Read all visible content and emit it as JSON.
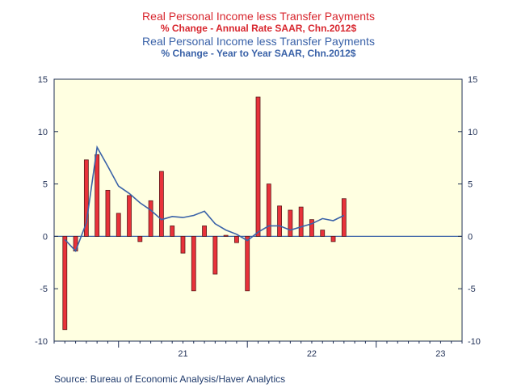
{
  "titles": {
    "series1_title": "Real Personal Income less Transfer Payments",
    "series1_subtitle": "% Change - Annual Rate    SAAR, Chn.2012$",
    "series2_title": "Real Personal Income less Transfer Payments",
    "series2_subtitle": "% Change - Year to Year    SAAR, Chn.2012$"
  },
  "source": "Source:  Bureau of Economic Analysis/Haver Analytics",
  "colors": {
    "plot_background": "#ffffe1",
    "bar_fill": "#e8323a",
    "bar_stroke": "#5a1a1a",
    "line": "#3a62a8",
    "zero_line": "#3a62a8",
    "title_red": "#d8262e",
    "title_blue": "#3a62a8"
  },
  "chart_data": {
    "type": "bar",
    "title": "Real Personal Income less Transfer Payments",
    "ylim": [
      -10,
      15
    ],
    "yticks": [
      -10,
      -5,
      0,
      5,
      10,
      15
    ],
    "grid": false,
    "x_tick_labels": [
      "21",
      "22",
      "23"
    ],
    "x_range": [
      "2020-07",
      "2023-09"
    ],
    "categories": [
      "2020-08",
      "2020-09",
      "2020-10",
      "2020-11",
      "2020-12",
      "2021-01",
      "2021-02",
      "2021-03",
      "2021-04",
      "2021-05",
      "2021-06",
      "2021-07",
      "2021-08",
      "2021-09",
      "2021-10",
      "2021-11",
      "2021-12",
      "2022-01",
      "2022-02",
      "2022-03",
      "2022-04",
      "2022-05",
      "2022-06",
      "2022-07",
      "2022-08",
      "2022-09",
      "2022-10",
      "2022-11"
    ],
    "series": [
      {
        "name": "% Change - Annual Rate",
        "kind": "bar",
        "values": [
          -8.9,
          -1.4,
          7.3,
          7.8,
          4.4,
          2.2,
          3.9,
          -0.5,
          3.4,
          6.2,
          1.0,
          -1.6,
          -5.2,
          1.0,
          -3.6,
          0.1,
          -0.6,
          -5.2,
          13.3,
          5.0,
          2.9,
          2.5,
          2.8,
          1.6,
          0.6,
          -0.5,
          3.6,
          null
        ]
      },
      {
        "name": "% Change - Year to Year",
        "kind": "line",
        "values": [
          -0.3,
          -1.4,
          1.3,
          8.5,
          6.7,
          4.8,
          4.1,
          3.2,
          2.5,
          1.6,
          1.9,
          1.8,
          2.0,
          2.4,
          1.2,
          0.6,
          0.2,
          -0.4,
          0.4,
          1.0,
          1.0,
          0.6,
          0.9,
          1.2,
          1.7,
          1.5,
          2.0,
          null
        ]
      }
    ]
  }
}
